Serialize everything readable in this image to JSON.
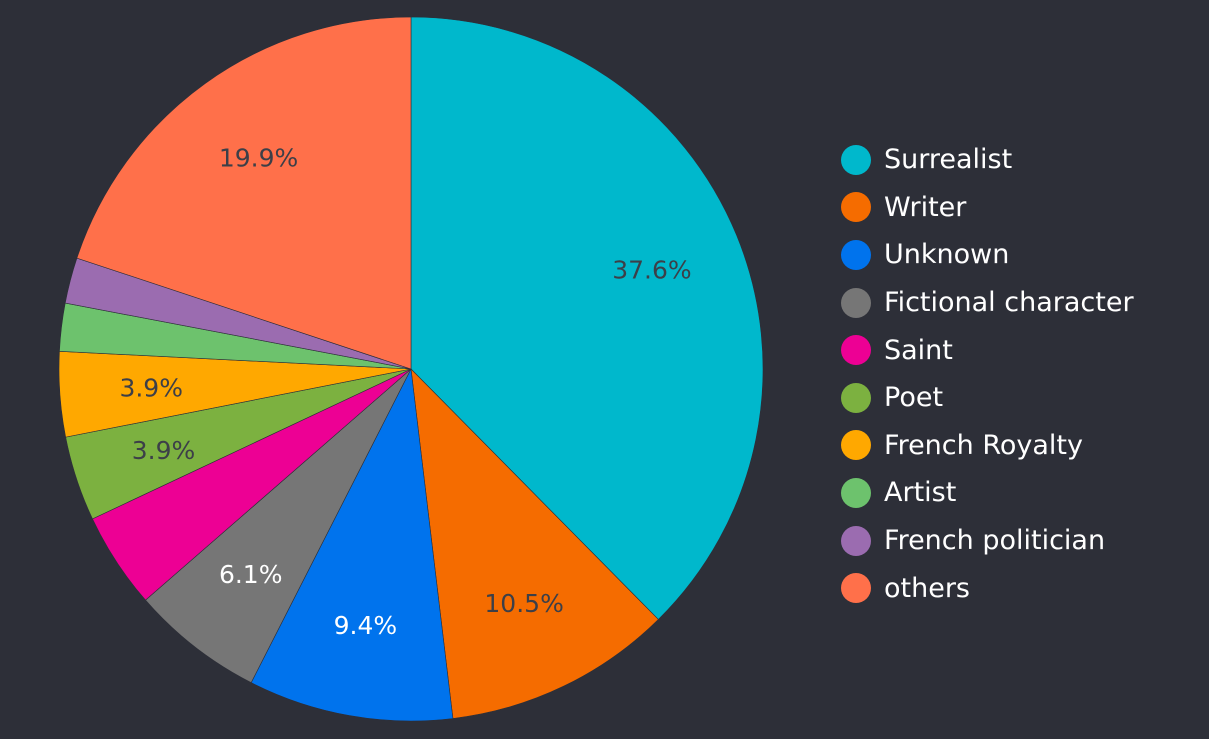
{
  "chart_data": {
    "type": "pie",
    "title": "",
    "slices": [
      {
        "name": "Surrealist",
        "value": 37.6,
        "label": "37.6%",
        "color": "#00b8cc",
        "label_color": "#3c3f48"
      },
      {
        "name": "Writer",
        "value": 10.5,
        "label": "10.5%",
        "color": "#f56c00",
        "label_color": "#3c3f48"
      },
      {
        "name": "Unknown",
        "value": 9.4,
        "label": "9.4%",
        "color": "#0073ed",
        "label_color": "#ffffff"
      },
      {
        "name": "Fictional character",
        "value": 6.1,
        "label": "6.1%",
        "color": "#767676",
        "label_color": "#ffffff"
      },
      {
        "name": "Saint",
        "value": 4.4,
        "label": "",
        "color": "#ed0094",
        "label_color": "#ffffff"
      },
      {
        "name": "Poet",
        "value": 3.9,
        "label": "3.9%",
        "color": "#7cb140",
        "label_color": "#3c3f48"
      },
      {
        "name": "French Royalty",
        "value": 3.9,
        "label": "3.9%",
        "color": "#ffa800",
        "label_color": "#3c3f48"
      },
      {
        "name": "Artist",
        "value": 2.2,
        "label": "",
        "color": "#6dc26d",
        "label_color": "#3c3f48"
      },
      {
        "name": "French politician",
        "value": 2.1,
        "label": "",
        "color": "#9b6cb0",
        "label_color": "#ffffff"
      },
      {
        "name": "others",
        "value": 19.9,
        "label": "19.9%",
        "color": "#ff704a",
        "label_color": "#3c3f48"
      }
    ],
    "legend": {
      "position": "right",
      "items": [
        "Surrealist",
        "Writer",
        "Unknown",
        "Fictional character",
        "Saint",
        "Poet",
        "French Royalty",
        "Artist",
        "French politician",
        "others"
      ]
    }
  }
}
